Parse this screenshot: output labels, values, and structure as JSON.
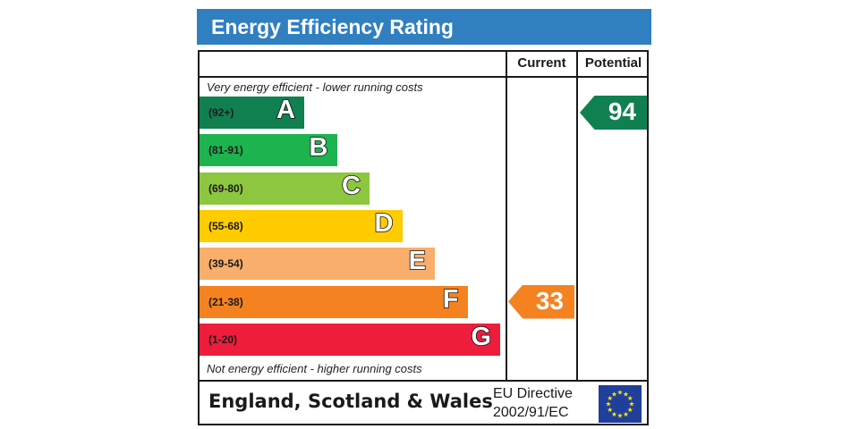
{
  "title": "Energy Efficiency Rating",
  "columns": {
    "current": "Current",
    "potential": "Potential"
  },
  "top_caption": "Very energy efficient - lower running costs",
  "bottom_caption": "Not energy efficient - higher running costs",
  "footer": {
    "region": "England, Scotland & Wales",
    "directive_line1": "EU Directive",
    "directive_line2": "2002/91/EC"
  },
  "colors": {
    "title_bg": "#2f7fc1",
    "flag_bg": "#1f3f9a",
    "flag_star": "#ffe600"
  },
  "chart_data": {
    "type": "bar",
    "title": "Energy Efficiency Rating",
    "bands": [
      {
        "letter": "A",
        "range": "(92+)",
        "color": "#108050"
      },
      {
        "letter": "B",
        "range": "(81-91)",
        "color": "#1db34f"
      },
      {
        "letter": "C",
        "range": "(69-80)",
        "color": "#8dc63f"
      },
      {
        "letter": "D",
        "range": "(55-68)",
        "color": "#ffcc00"
      },
      {
        "letter": "E",
        "range": "(39-54)",
        "color": "#f9ae6b"
      },
      {
        "letter": "F",
        "range": "(21-38)",
        "color": "#f58220"
      },
      {
        "letter": "G",
        "range": "(1-20)",
        "color": "#ee1d3b"
      }
    ],
    "current": {
      "value": 33,
      "band": "F",
      "color": "#f58220"
    },
    "potential": {
      "value": 94,
      "band": "A",
      "color": "#108050"
    }
  }
}
